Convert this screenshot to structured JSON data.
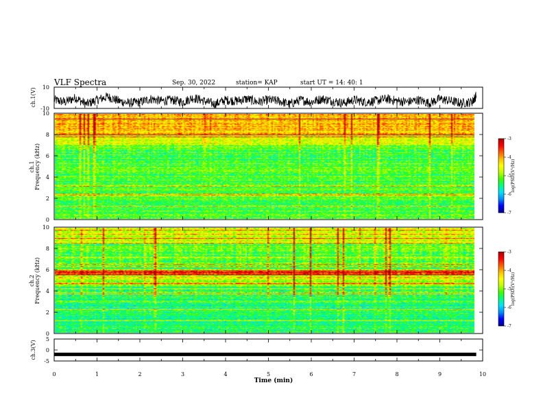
{
  "header": {
    "title": "VLF Spectra",
    "date": "Sep. 30, 2022",
    "station": "station= KAP",
    "start_ut": "start  UT =   14: 40: 1"
  },
  "chart_data": [
    {
      "type": "line",
      "name": "ch1-waveform",
      "ylabel": "ch.1(V)",
      "ylim": [
        -10,
        10
      ],
      "yticks": [
        "10",
        "-10"
      ],
      "xlim": [
        0,
        10
      ],
      "x": [
        0,
        0.25,
        0.5,
        0.75,
        1.0,
        1.25,
        1.5,
        1.75,
        2.0,
        2.25,
        2.5,
        2.75,
        3.0,
        3.25,
        3.5,
        3.75,
        4.0,
        4.25,
        4.5,
        4.75,
        5.0,
        5.25,
        5.5,
        5.75,
        6.0,
        6.25,
        6.5,
        6.75,
        7.0,
        7.25,
        7.5,
        7.75,
        8.0,
        8.25,
        8.5,
        8.75,
        9.0,
        9.25,
        9.5,
        9.75,
        9.85
      ],
      "values": [
        -2,
        -4,
        0,
        -6,
        -2,
        1,
        -3,
        -5,
        -4,
        -1,
        -3,
        -2,
        -4,
        0,
        -3,
        -6,
        -2,
        -3,
        -1,
        -4,
        -2,
        -3,
        -6,
        -2,
        -4,
        -1,
        -3,
        -5,
        -2,
        -4,
        -3,
        -1,
        -3,
        -4,
        -2,
        -5,
        -1,
        -3,
        -5,
        -4,
        2
      ]
    },
    {
      "type": "heatmap",
      "name": "ch1-spectrogram",
      "ylabel": "ch.1\nFrequency (kHz)",
      "xlim": [
        0,
        10
      ],
      "ylim": [
        0,
        10
      ],
      "yticks": [
        "0",
        "2",
        "4",
        "6",
        "8",
        "10"
      ],
      "colorbar": {
        "label": "log(PSD)(V²/Hz)",
        "range": [
          -7,
          -3
        ],
        "ticks": [
          "-3",
          "-4",
          "-5",
          "-6",
          "-7"
        ]
      }
    },
    {
      "type": "heatmap",
      "name": "ch2-spectrogram",
      "ylabel": "ch.2\nFrequency (kHz)",
      "xlim": [
        0,
        10
      ],
      "ylim": [
        0,
        10
      ],
      "yticks": [
        "0",
        "2",
        "4",
        "6",
        "8",
        "10"
      ],
      "colorbar": {
        "label": "log(PSD)(V²/Hz)",
        "range": [
          -7,
          -3
        ],
        "ticks": [
          "-3",
          "-4",
          "-5",
          "-6",
          "-7"
        ]
      }
    },
    {
      "type": "line",
      "name": "ch3-trace",
      "ylabel": "ch.3(V)",
      "ylim": [
        -5,
        5
      ],
      "yticks": [
        "5",
        "0",
        "-5"
      ],
      "xlim": [
        0,
        10
      ],
      "x": [
        0,
        9.85
      ],
      "values": [
        -2,
        -2
      ],
      "xlabel": "Time  (min)",
      "xticks": [
        "0",
        "1",
        "2",
        "3",
        "4",
        "5",
        "6",
        "7",
        "8",
        "9",
        "10"
      ]
    }
  ],
  "colors": {
    "colormap": [
      "#00008f",
      "#0000ff",
      "#0090ff",
      "#00e0ff",
      "#00ff80",
      "#40ff00",
      "#c0ff00",
      "#ffff00",
      "#ffc000",
      "#ff6000",
      "#ff0000",
      "#b00000"
    ],
    "trace": "#000000"
  }
}
